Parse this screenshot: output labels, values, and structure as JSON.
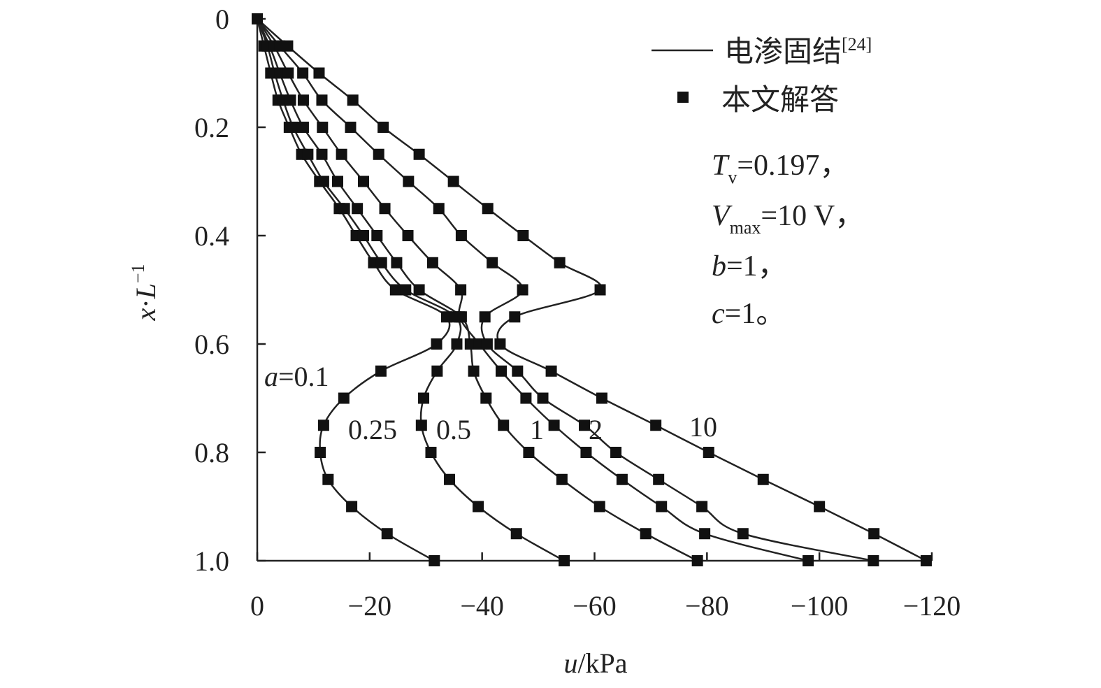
{
  "chart_data": {
    "type": "line",
    "xlabel_var": "u",
    "xlabel_unit": "/kPa",
    "ylabel_var": "x",
    "ylabel_dot": "·",
    "ylabel_L": "L",
    "ylabel_exp": "−1",
    "xlim": [
      0,
      -120
    ],
    "ylim": [
      0,
      1.0
    ],
    "y_inverted": true,
    "x_ticks": [
      0,
      -20,
      -40,
      -60,
      -80,
      -100,
      -120
    ],
    "x_tick_labels": [
      "0",
      "−20",
      "−40",
      "−60",
      "−80",
      "−100",
      "−120"
    ],
    "y_ticks": [
      0,
      0.2,
      0.4,
      0.6,
      0.8,
      1.0
    ],
    "y_tick_labels": [
      "0",
      "0.2",
      "0.4",
      "0.6",
      "0.8",
      "1.0"
    ],
    "legend": {
      "line_label": "电渗固结",
      "line_ref": "[24]",
      "marker_label": "本文解答"
    },
    "params": {
      "Tv_main": "T",
      "Tv_sub": "v",
      "Tv_val": "=0.197，",
      "Vmax_main": "V",
      "Vmax_sub": "max",
      "Vmax_val": "=10 V，",
      "b_main": "b",
      "b_val": "=1，",
      "c_main": "c",
      "c_val": "=1。"
    },
    "a_prefix": "a",
    "series": [
      {
        "name": "0.1",
        "label": "=0.1",
        "y": [
          0,
          0.05,
          0.1,
          0.15,
          0.2,
          0.25,
          0.3,
          0.35,
          0.4,
          0.45,
          0.5,
          0.55,
          0.6,
          0.65,
          0.7,
          0.75,
          0.8,
          0.85,
          0.9,
          0.95,
          1.0
        ],
        "x": [
          0,
          -1.2,
          -2.4,
          -3.7,
          -5.7,
          -7.9,
          -11.1,
          -14.6,
          -17.6,
          -20.7,
          -24.6,
          -33.7,
          -31.9,
          -22,
          -15.4,
          -11.8,
          -11.2,
          -12.6,
          -16.8,
          -23.1,
          -31.5
        ]
      },
      {
        "name": "0.25",
        "label": "0.25",
        "y": [
          0,
          0.05,
          0.1,
          0.15,
          0.2,
          0.25,
          0.3,
          0.35,
          0.4,
          0.45,
          0.5,
          0.55,
          0.6,
          0.65,
          0.7,
          0.75,
          0.8,
          0.85,
          0.9,
          0.95,
          1.0
        ],
        "x": [
          0,
          -1.8,
          -3.1,
          -4.6,
          -6.4,
          -9.0,
          -11.8,
          -15.5,
          -18.9,
          -22.1,
          -26.4,
          -35.3,
          -35.5,
          -32,
          -29.6,
          -29.2,
          -30.9,
          -34.2,
          -39.3,
          -46.1,
          -54.6
        ]
      },
      {
        "name": "0.5",
        "label": "0.5",
        "y": [
          0,
          0.05,
          0.1,
          0.15,
          0.2,
          0.25,
          0.3,
          0.35,
          0.4,
          0.45,
          0.5,
          0.55,
          0.6,
          0.65,
          0.7,
          0.75,
          0.8,
          0.85,
          0.9,
          0.95,
          1.0
        ],
        "x": [
          0,
          -2.2,
          -4.0,
          -5.9,
          -8.2,
          -11.5,
          -14.3,
          -17.8,
          -21.3,
          -24.8,
          -28.8,
          -36.3,
          -37.9,
          -38.5,
          -40.7,
          -43.8,
          -48.3,
          -54.2,
          -60.9,
          -69.1,
          -78.3
        ]
      },
      {
        "name": "1",
        "label": "1",
        "y": [
          0,
          0.05,
          0.1,
          0.15,
          0.2,
          0.25,
          0.3,
          0.35,
          0.4,
          0.45,
          0.5,
          0.55,
          0.6,
          0.65,
          0.7,
          0.75,
          0.8,
          0.85,
          0.9,
          0.95,
          1.0
        ],
        "x": [
          0,
          -3.0,
          -5.5,
          -8.2,
          -11.6,
          -15.0,
          -18.9,
          -22.7,
          -26.8,
          -31.2,
          -36.2,
          -36.0,
          -39.5,
          -43.4,
          -47.8,
          -52.8,
          -58.5,
          -64.9,
          -71.9,
          -79.6,
          -98.0
        ]
      },
      {
        "name": "2",
        "label": "2",
        "y": [
          0,
          0.05,
          0.1,
          0.15,
          0.2,
          0.25,
          0.3,
          0.35,
          0.4,
          0.45,
          0.5,
          0.55,
          0.6,
          0.65,
          0.7,
          0.75,
          0.8,
          0.85,
          0.9,
          0.95,
          1.0
        ],
        "x": [
          0,
          -4.0,
          -8.1,
          -11.5,
          -16.6,
          -21.6,
          -26.9,
          -32.3,
          -36.3,
          -41.8,
          -47.2,
          -40.5,
          -40.9,
          -46.3,
          -50.8,
          -58.2,
          -63.8,
          -71.4,
          -79.1,
          -86.4,
          -109.6
        ]
      },
      {
        "name": "10",
        "label": "10",
        "y": [
          0,
          0.05,
          0.1,
          0.15,
          0.2,
          0.25,
          0.3,
          0.35,
          0.4,
          0.45,
          0.5,
          0.55,
          0.6,
          0.65,
          0.7,
          0.75,
          0.8,
          0.85,
          0.9,
          0.95,
          1.0
        ],
        "x": [
          0,
          -5.4,
          -11.0,
          -17.0,
          -22.4,
          -28.8,
          -34.9,
          -41.0,
          -47.3,
          -53.8,
          -61.0,
          -45.8,
          -43.2,
          -52.3,
          -61.3,
          -70.9,
          -80.3,
          -90.0,
          -100.0,
          -109.7,
          -119.0
        ]
      }
    ]
  }
}
